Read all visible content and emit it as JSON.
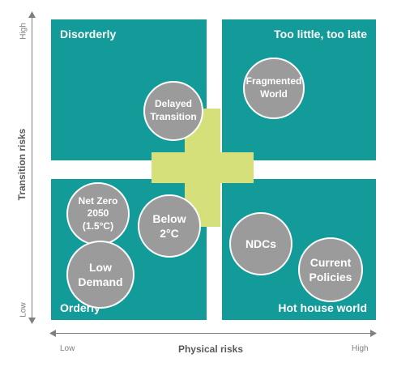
{
  "colors": {
    "quadrant": "#129b98",
    "cross": "#d6e07a",
    "bubble": "#9b9b9b",
    "axis": "#7f7f7f"
  },
  "y_axis": {
    "title": "Transition risks",
    "high": "High",
    "low": "Low"
  },
  "x_axis": {
    "title": "Physical risks",
    "low": "Low",
    "high": "High"
  },
  "quadrants": {
    "top_left": "Disorderly",
    "top_right": "Too little, too late",
    "bottom_left": "Orderly",
    "bottom_right": "Hot house world"
  },
  "scenarios": {
    "delayed_transition": [
      "Delayed",
      "Transition"
    ],
    "fragmented_world": [
      "Fragmented",
      "World"
    ],
    "net_zero": [
      "Net Zero",
      "2050",
      "(1.5°C)"
    ],
    "below_2c": [
      "Below",
      "2°C"
    ],
    "low_demand": [
      "Low",
      "Demand"
    ],
    "ndcs": [
      "NDCs"
    ],
    "current_policies": [
      "Current",
      "Policies"
    ]
  }
}
